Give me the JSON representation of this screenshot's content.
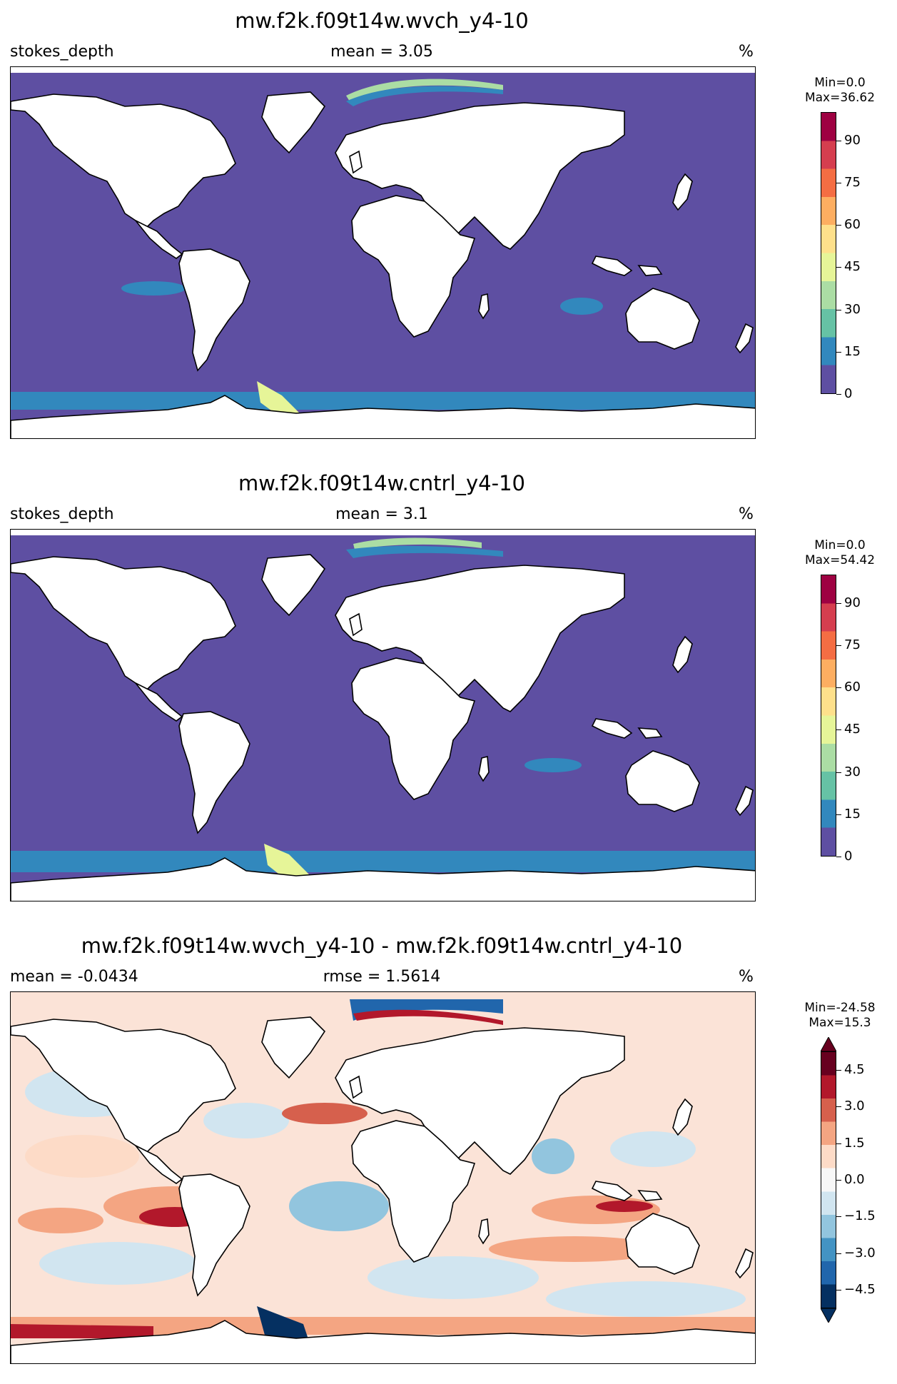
{
  "panels": [
    {
      "title": "mw.f2k.f09t14w.wvch_y4-10",
      "left_label": "stokes_depth",
      "center_label": "mean = 3.05",
      "right_label": "%",
      "minmax": [
        "Min=0.0",
        "Max=36.62"
      ],
      "colorbar": {
        "ticks": [
          "0",
          "15",
          "30",
          "45",
          "60",
          "75",
          "90"
        ],
        "tick_values": [
          0,
          15,
          30,
          45,
          60,
          75,
          90
        ],
        "range": [
          0,
          100
        ],
        "colors": [
          "#5e4fa2",
          "#3288bd",
          "#66c2a5",
          "#abdda4",
          "#e6f598",
          "#fee08b",
          "#fdae61",
          "#f46d43",
          "#d53e4f",
          "#9e0142"
        ]
      }
    },
    {
      "title": "mw.f2k.f09t14w.cntrl_y4-10",
      "left_label": "stokes_depth",
      "center_label": "mean = 3.1",
      "right_label": "%",
      "minmax": [
        "Min=0.0",
        "Max=54.42"
      ],
      "colorbar": {
        "ticks": [
          "0",
          "15",
          "30",
          "45",
          "60",
          "75",
          "90"
        ],
        "tick_values": [
          0,
          15,
          30,
          45,
          60,
          75,
          90
        ],
        "range": [
          0,
          100
        ],
        "colors": [
          "#5e4fa2",
          "#3288bd",
          "#66c2a5",
          "#abdda4",
          "#e6f598",
          "#fee08b",
          "#fdae61",
          "#f46d43",
          "#d53e4f",
          "#9e0142"
        ]
      }
    },
    {
      "title": "mw.f2k.f09t14w.wvch_y4-10 - mw.f2k.f09t14w.cntrl_y4-10",
      "left_label": "mean = -0.0434",
      "center_label": "rmse = 1.5614",
      "right_label": "%",
      "minmax": [
        "Min=-24.58",
        "Max=15.3"
      ],
      "colorbar": {
        "ticks": [
          "−4.5",
          "−3.0",
          "−1.5",
          "0.0",
          "1.5",
          "3.0",
          "4.5"
        ],
        "tick_values": [
          -4.5,
          -3.0,
          -1.5,
          0.0,
          1.5,
          3.0,
          4.5
        ],
        "range": [
          -5.25,
          5.25
        ],
        "colors": [
          "#053061",
          "#2166ac",
          "#4393c3",
          "#92c5de",
          "#d1e5f0",
          "#f7f7f7",
          "#fddbc7",
          "#f4a582",
          "#d6604d",
          "#b2182b",
          "#67001f"
        ]
      }
    }
  ],
  "colors": {
    "ocean_base_1": "#5e4fa2",
    "land": "#ffffff",
    "coast": "#000000"
  }
}
